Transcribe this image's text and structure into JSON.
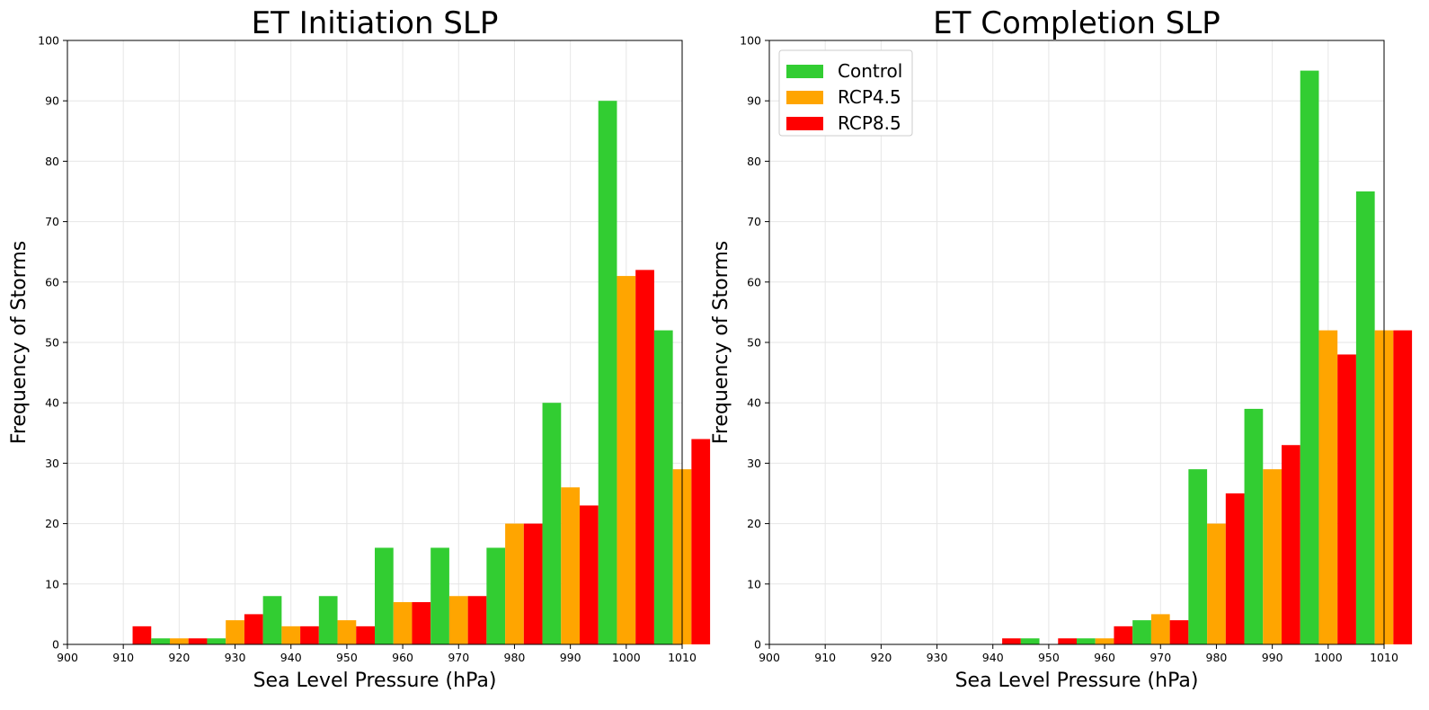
{
  "figure": {
    "background": "#ffffff"
  },
  "colors": {
    "Control": "#32cd32",
    "RCP4.5": "#ffa500",
    "RCP8.5": "#ff0000",
    "grid": "#e6e6e6",
    "axis": "#000000"
  },
  "chart_data": [
    {
      "type": "bar",
      "title": "ET Initiation SLP",
      "xlabel": "Sea Level Pressure (hPa)",
      "ylabel": "Frequency of Storms",
      "xlim": [
        900,
        1010
      ],
      "ylim": [
        0,
        100
      ],
      "xticks": [
        900,
        910,
        920,
        930,
        940,
        950,
        960,
        970,
        980,
        990,
        1000,
        1010
      ],
      "yticks": [
        0,
        10,
        20,
        30,
        40,
        50,
        60,
        70,
        80,
        90,
        100
      ],
      "grid": true,
      "bin_edges": [
        905,
        915,
        925,
        935,
        945,
        955,
        965,
        975,
        985,
        995,
        1005
      ],
      "series": [
        {
          "name": "Control",
          "values": [
            0,
            1,
            1,
            8,
            8,
            16,
            16,
            16,
            40,
            90,
            52
          ]
        },
        {
          "name": "RCP4.5",
          "values": [
            0,
            1,
            4,
            3,
            4,
            7,
            8,
            20,
            26,
            61,
            29
          ]
        },
        {
          "name": "RCP8.5",
          "values": [
            3,
            1,
            5,
            3,
            3,
            7,
            8,
            20,
            23,
            62,
            34
          ]
        }
      ],
      "legend": null
    },
    {
      "type": "bar",
      "title": "ET Completion SLP",
      "xlabel": "Sea Level Pressure (hPa)",
      "ylabel": "Frequency of Storms",
      "xlim": [
        900,
        1010
      ],
      "ylim": [
        0,
        100
      ],
      "xticks": [
        900,
        910,
        920,
        930,
        940,
        950,
        960,
        970,
        980,
        990,
        1000,
        1010
      ],
      "yticks": [
        0,
        10,
        20,
        30,
        40,
        50,
        60,
        70,
        80,
        90,
        100
      ],
      "grid": true,
      "bin_edges": [
        935,
        945,
        955,
        965,
        975,
        985,
        995,
        1005
      ],
      "series": [
        {
          "name": "Control",
          "values": [
            0,
            1,
            1,
            4,
            29,
            39,
            95,
            75
          ]
        },
        {
          "name": "RCP4.5",
          "values": [
            0,
            0,
            1,
            5,
            20,
            29,
            52,
            52
          ]
        },
        {
          "name": "RCP8.5",
          "values": [
            1,
            1,
            3,
            4,
            25,
            33,
            48,
            52
          ]
        }
      ],
      "legend": {
        "placement": "top-left",
        "entries": [
          "Control",
          "RCP4.5",
          "RCP8.5"
        ]
      }
    }
  ]
}
